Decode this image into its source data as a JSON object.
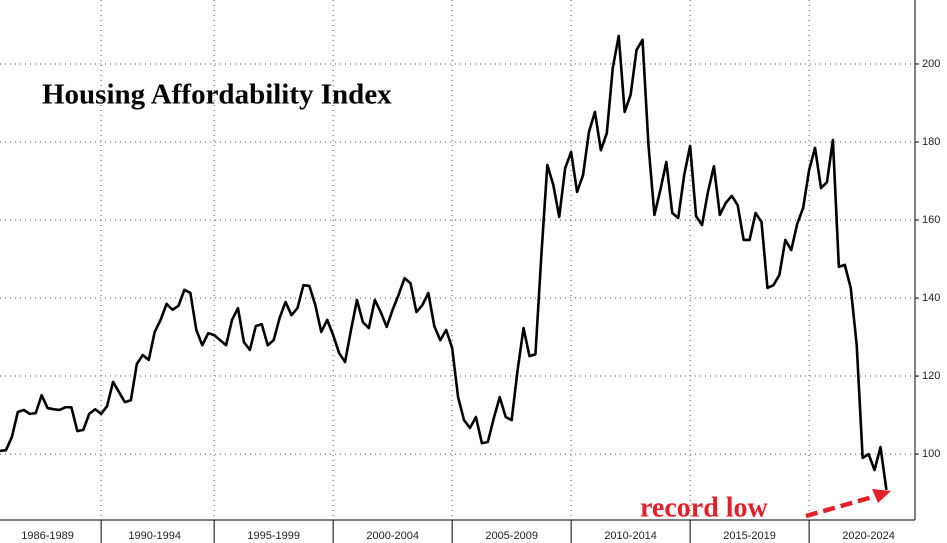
{
  "chart_data": {
    "type": "line",
    "title": "Housing Affordability Index",
    "annotation": "record low",
    "x": [
      1986,
      1986.25,
      1986.5,
      1986.75,
      1987,
      1987.25,
      1987.5,
      1987.75,
      1988,
      1988.25,
      1988.5,
      1988.75,
      1989,
      1989.25,
      1989.5,
      1989.75,
      1990,
      1990.25,
      1990.5,
      1990.75,
      1991,
      1991.25,
      1991.5,
      1991.75,
      1992,
      1992.25,
      1992.5,
      1992.75,
      1993,
      1993.25,
      1993.5,
      1993.75,
      1994,
      1994.25,
      1994.5,
      1994.75,
      1995,
      1995.25,
      1995.5,
      1995.75,
      1996,
      1996.25,
      1996.5,
      1996.75,
      1997,
      1997.25,
      1997.5,
      1997.75,
      1998,
      1998.25,
      1998.5,
      1998.75,
      1999,
      1999.25,
      1999.5,
      1999.75,
      2000,
      2000.25,
      2000.5,
      2000.75,
      2001,
      2001.25,
      2001.5,
      2001.75,
      2002,
      2002.25,
      2002.5,
      2002.75,
      2003,
      2003.25,
      2003.5,
      2003.75,
      2004,
      2004.25,
      2004.5,
      2004.75,
      2005,
      2005.25,
      2005.5,
      2005.75,
      2006,
      2006.25,
      2006.5,
      2006.75,
      2007,
      2007.25,
      2007.5,
      2007.75,
      2008,
      2008.25,
      2008.5,
      2008.75,
      2009,
      2009.25,
      2009.5,
      2009.75,
      2010,
      2010.25,
      2010.5,
      2010.75,
      2011,
      2011.25,
      2011.5,
      2011.75,
      2012,
      2012.25,
      2012.5,
      2012.75,
      2013,
      2013.25,
      2013.5,
      2013.75,
      2014,
      2014.25,
      2014.5,
      2014.75,
      2015,
      2015.25,
      2015.5,
      2015.75,
      2016,
      2016.25,
      2016.5,
      2016.75,
      2017,
      2017.25,
      2017.5,
      2017.75,
      2018,
      2018.25,
      2018.5,
      2018.75,
      2019,
      2019.25,
      2019.5,
      2019.75,
      2020,
      2020.25,
      2020.5,
      2020.75,
      2021,
      2021.25,
      2021.5,
      2021.75,
      2022,
      2022.25,
      2022.5,
      2022.75,
      2023,
      2023.25
    ],
    "series": [
      {
        "name": "Housing Affordability Index",
        "color": "#000000",
        "values": [
          100.8,
          101,
          104.4,
          110.8,
          111.3,
          110.3,
          110.5,
          115.1,
          111.8,
          111.5,
          111.3,
          112,
          112,
          105.9,
          106.2,
          110.3,
          111.5,
          110.3,
          112.3,
          118.5,
          115.9,
          113.3,
          113.8,
          123.1,
          125.4,
          124.1,
          131.3,
          134.4,
          138.5,
          137,
          138,
          142.1,
          141.3,
          131.8,
          127.9,
          131,
          130.5,
          129.2,
          127.9,
          134.4,
          137.4,
          128.7,
          126.7,
          132.8,
          133.3,
          127.9,
          129.2,
          134.9,
          139,
          135.6,
          137.4,
          143.3,
          143.1,
          138.2,
          131.3,
          134.4,
          130.5,
          125.9,
          123.6,
          131.8,
          139.5,
          133.8,
          132.3,
          139.5,
          136.4,
          132.6,
          137,
          140.8,
          145.1,
          143.8,
          136.4,
          138.2,
          141.3,
          132.8,
          129.2,
          131.8,
          127.2,
          114.6,
          108.7,
          106.7,
          109.5,
          102.8,
          103.1,
          109.2,
          114.6,
          109.5,
          108.7,
          121.5,
          132.3,
          125.1,
          125.6,
          151,
          174.1,
          169,
          160.8,
          173.3,
          177.4,
          167.2,
          171.5,
          182.6,
          187.7,
          177.9,
          182.3,
          199,
          207.2,
          187.7,
          192.1,
          203.6,
          206.2,
          179.2,
          161.3,
          167.7,
          174.9,
          161.8,
          160.5,
          171.5,
          179,
          161,
          158.7,
          167.2,
          173.8,
          161.3,
          164.4,
          166.2,
          163.8,
          154.9,
          154.9,
          161.8,
          159.5,
          142.6,
          143.3,
          145.9,
          154.9,
          152.3,
          159,
          163.1,
          172.8,
          178.5,
          168.2,
          169.7,
          180.5,
          148,
          148.5,
          142.6,
          128,
          99,
          100,
          95.9,
          101.8,
          90.8
        ]
      }
    ],
    "xlim": [
      1986,
      2024.45
    ],
    "xticks": [
      {
        "value": 1988,
        "label": "1986-1989"
      },
      {
        "value": 1992.5,
        "label": "1990-1994"
      },
      {
        "value": 1997.5,
        "label": "1995-1999"
      },
      {
        "value": 2002.5,
        "label": "2000-2004"
      },
      {
        "value": 2007.5,
        "label": "2005-2009"
      },
      {
        "value": 2012.5,
        "label": "2010-2014"
      },
      {
        "value": 2017.5,
        "label": "2015-2019"
      },
      {
        "value": 2022.5,
        "label": "2020-2024"
      }
    ],
    "ylim": [
      83.1,
      216.4
    ],
    "yticks": [
      100,
      120,
      140,
      160,
      180,
      200
    ],
    "grid": true
  }
}
